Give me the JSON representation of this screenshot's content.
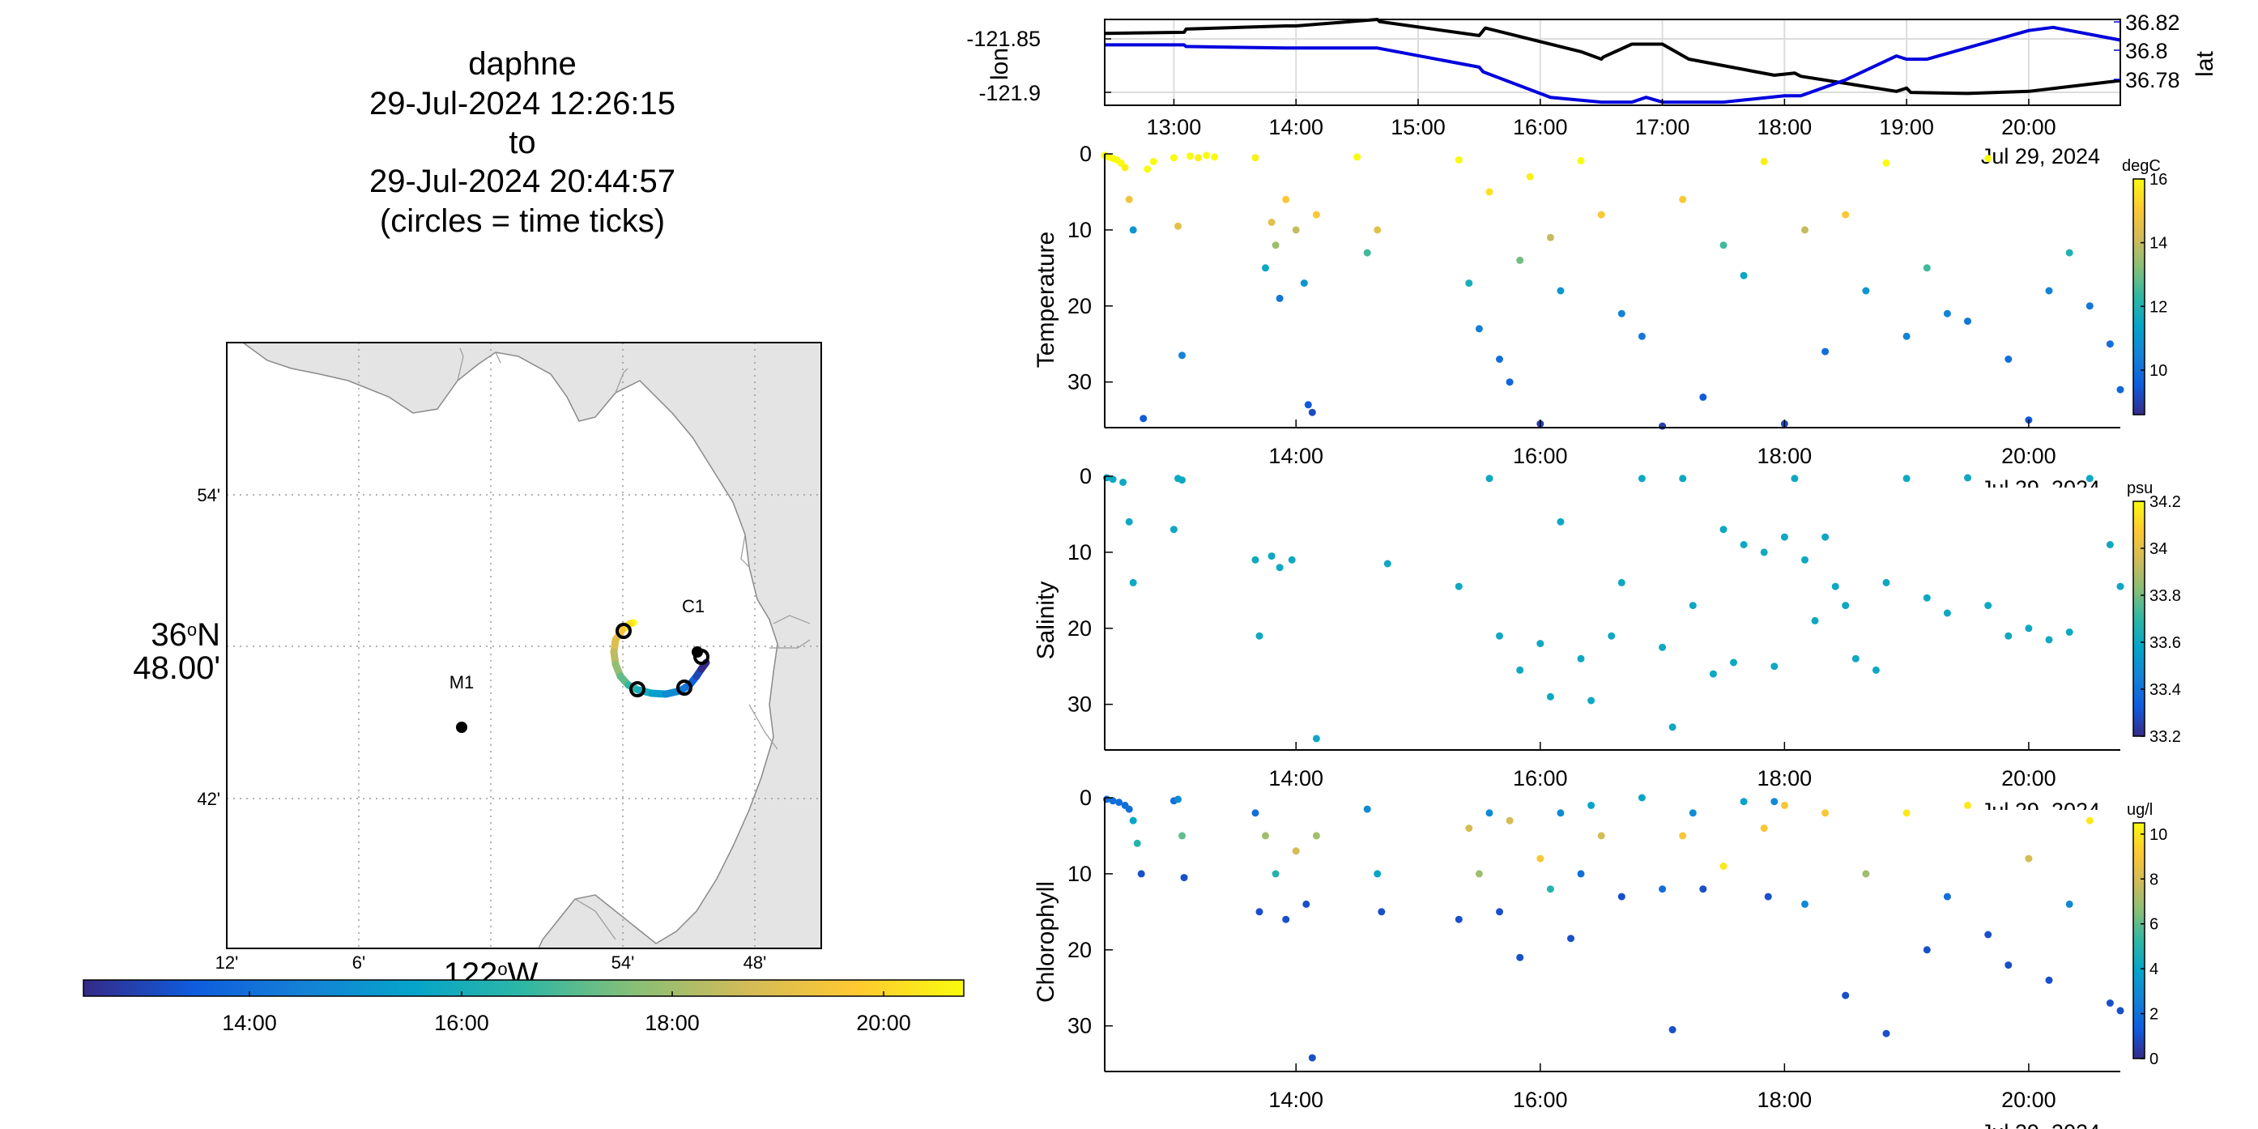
{
  "title_lines": [
    "daphne",
    "29-Jul-2024 12:26:15",
    "to",
    "29-Jul-2024 20:44:57",
    "(circles = time ticks)"
  ],
  "map": {
    "lat_ticks": [
      "54'",
      "48.00'",
      "42'"
    ],
    "lat_deg_label": "36",
    "lat_deg_sup": "o",
    "lat_hem": "N",
    "lon_ticks": [
      "12'",
      "6'",
      "54'",
      "48'"
    ],
    "lon_deg_label": "122",
    "lon_deg_sup": "o",
    "lon_hem": "W",
    "stations": [
      {
        "name": "C1"
      },
      {
        "name": "M1"
      }
    ],
    "time_colorbar_ticks": [
      "14:00",
      "16:00",
      "18:00",
      "20:00"
    ]
  },
  "colors": {
    "lon_line": "#000000",
    "lat_line": "#0000dd",
    "land": "#e4e4e4",
    "parula": [
      "#352a87",
      "#0f5cdd",
      "#1481d6",
      "#06a4ca",
      "#2eb7a4",
      "#87bf77",
      "#d1bb59",
      "#fec832",
      "#f9fb0e"
    ]
  },
  "chart_data": [
    {
      "type": "line",
      "title": "",
      "xlabel": "Jul 29, 2024",
      "x_ticks": [
        "13:00",
        "14:00",
        "15:00",
        "16:00",
        "17:00",
        "18:00",
        "19:00",
        "20:00"
      ],
      "x_range": [
        "12:26",
        "20:45"
      ],
      "grid": true,
      "y_left": {
        "label": "lon",
        "ticks": [
          "-121.85",
          "-121.9"
        ],
        "range": [
          -121.91,
          -121.83
        ]
      },
      "y_right": {
        "label": "lat",
        "ticks": [
          "36.82",
          "36.8",
          "36.78"
        ],
        "range": [
          36.77,
          36.824
        ]
      },
      "series": [
        {
          "name": "lon",
          "axis": "left",
          "x": [
            "12:26",
            "13:05",
            "13:06",
            "13:55",
            "14:00",
            "14:40",
            "14:41",
            "15:30",
            "15:33",
            "16:20",
            "16:30",
            "16:31",
            "16:45",
            "16:55",
            "17:00",
            "17:13",
            "17:55",
            "18:05",
            "18:08",
            "18:55",
            "19:00",
            "19:02",
            "19:30",
            "20:00",
            "20:45"
          ],
          "y": [
            -121.843,
            -121.842,
            -121.839,
            -121.836,
            -121.836,
            -121.83,
            -121.832,
            -121.845,
            -121.838,
            -121.86,
            -121.867,
            -121.865,
            -121.853,
            -121.853,
            -121.853,
            -121.867,
            -121.882,
            -121.88,
            -121.883,
            -121.897,
            -121.894,
            -121.898,
            -121.899,
            -121.897,
            -121.887
          ]
        },
        {
          "name": "lat",
          "axis": "right",
          "x": [
            "12:26",
            "13:05",
            "13:06",
            "13:55",
            "14:00",
            "14:40",
            "15:30",
            "15:32",
            "16:05",
            "16:30",
            "16:45",
            "16:52",
            "17:00",
            "17:30",
            "18:00",
            "18:08",
            "18:30",
            "18:55",
            "19:00",
            "19:10",
            "20:00",
            "20:12",
            "20:45"
          ],
          "y": [
            36.808,
            36.808,
            36.807,
            36.806,
            36.806,
            36.806,
            36.794,
            36.791,
            36.775,
            36.772,
            36.772,
            36.775,
            36.772,
            36.772,
            36.776,
            36.776,
            36.786,
            36.801,
            36.799,
            36.799,
            36.817,
            36.819,
            36.811
          ]
        }
      ]
    },
    {
      "type": "scatter",
      "title": "",
      "ylabel": "Temperature",
      "xlabel": "Jul 29, 2024",
      "x_ticks": [
        "14:00",
        "16:00",
        "18:00",
        "20:00"
      ],
      "y_ticks": [
        "0",
        "10",
        "20",
        "30"
      ],
      "ylim": [
        0,
        36
      ],
      "y_reversed": true,
      "colorbar": {
        "unit": "degC",
        "ticks": [
          "16",
          "14",
          "12",
          "10"
        ],
        "range": [
          8.6,
          16
        ]
      },
      "x": [
        "12:26",
        "12:28",
        "12:30",
        "12:32",
        "12:34",
        "12:36",
        "12:38",
        "12:40",
        "12:45",
        "12:47",
        "12:50",
        "13:00",
        "13:02",
        "13:04",
        "13:08",
        "13:12",
        "13:16",
        "13:20",
        "13:40",
        "13:45",
        "13:48",
        "13:50",
        "13:52",
        "13:55",
        "14:00",
        "14:04",
        "14:06",
        "14:08",
        "14:10",
        "14:30",
        "14:35",
        "14:40",
        "15:20",
        "15:25",
        "15:30",
        "15:35",
        "15:40",
        "15:45",
        "15:50",
        "15:55",
        "16:00",
        "16:05",
        "16:10",
        "16:20",
        "16:30",
        "16:40",
        "16:50",
        "17:00",
        "17:10",
        "17:20",
        "17:30",
        "17:40",
        "17:50",
        "18:00",
        "18:10",
        "18:20",
        "18:30",
        "18:40",
        "18:50",
        "19:00",
        "19:10",
        "19:20",
        "19:30",
        "19:40",
        "19:50",
        "20:00",
        "20:10",
        "20:20",
        "20:30",
        "20:40",
        "20:45"
      ],
      "y": [
        0.2,
        0.4,
        0.6,
        0.8,
        1.2,
        1.8,
        6,
        10,
        34.8,
        2,
        1,
        0.5,
        9.5,
        26.5,
        0.3,
        0.5,
        0.2,
        0.4,
        0.5,
        15,
        9,
        12,
        19,
        6,
        10,
        17,
        33,
        34,
        8,
        0.4,
        13,
        10,
        0.8,
        17,
        23,
        5,
        27,
        30,
        14,
        3,
        35.5,
        11,
        18,
        0.9,
        8,
        21,
        24,
        35.8,
        6,
        32,
        12,
        16,
        1,
        35.5,
        10,
        26,
        8,
        18,
        1.2,
        24,
        15,
        21,
        22,
        0.6,
        27,
        35,
        18,
        13,
        20,
        25,
        31
      ],
      "c": [
        16,
        16,
        16,
        16,
        16,
        15.8,
        14.8,
        11,
        9.5,
        16,
        16,
        16,
        14.5,
        10.5,
        16,
        15.8,
        16,
        16,
        15.8,
        11.5,
        14.5,
        13.5,
        10.2,
        15,
        14,
        11,
        9.5,
        9.2,
        15,
        16,
        12.5,
        14.5,
        16,
        11.8,
        10.4,
        15.5,
        10,
        9.8,
        13,
        15.8,
        9,
        14,
        11,
        16,
        15,
        10.5,
        10.2,
        9,
        15,
        9.5,
        12.5,
        11.5,
        15.8,
        9.2,
        14,
        10,
        15,
        11,
        16,
        10.5,
        12.5,
        10.5,
        10.2,
        16,
        10,
        9.5,
        10.5,
        12,
        10.2,
        10,
        9.8
      ]
    },
    {
      "type": "scatter",
      "title": "",
      "ylabel": "Salinity",
      "xlabel": "Jul 29, 2024",
      "x_ticks": [
        "14:00",
        "16:00",
        "18:00",
        "20:00"
      ],
      "y_ticks": [
        "0",
        "10",
        "20",
        "30"
      ],
      "ylim": [
        0,
        36
      ],
      "y_reversed": true,
      "colorbar": {
        "unit": "psu",
        "ticks": [
          "34.2",
          "34",
          "33.8",
          "33.6",
          "33.4",
          "33.2"
        ],
        "range": [
          33.2,
          34.2
        ]
      },
      "x": [
        "12:27",
        "12:30",
        "12:35",
        "12:38",
        "12:40",
        "13:00",
        "13:02",
        "13:04",
        "13:40",
        "13:42",
        "13:48",
        "13:52",
        "13:58",
        "14:10",
        "14:45",
        "15:20",
        "15:35",
        "15:40",
        "15:50",
        "16:00",
        "16:05",
        "16:10",
        "16:20",
        "16:25",
        "16:35",
        "16:40",
        "16:50",
        "17:00",
        "17:05",
        "17:10",
        "17:15",
        "17:25",
        "17:30",
        "17:35",
        "17:40",
        "17:50",
        "17:55",
        "18:00",
        "18:05",
        "18:10",
        "18:15",
        "18:20",
        "18:25",
        "18:30",
        "18:35",
        "18:45",
        "18:50",
        "19:00",
        "19:10",
        "19:20",
        "19:30",
        "19:40",
        "19:50",
        "20:00",
        "20:10",
        "20:20",
        "20:30",
        "20:40",
        "20:45"
      ],
      "y": [
        0.2,
        0.4,
        0.8,
        6,
        14,
        7,
        0.3,
        0.5,
        11,
        21,
        10.5,
        12,
        11,
        34.5,
        11.5,
        14.5,
        0.3,
        21,
        25.5,
        22,
        29,
        6,
        24,
        29.5,
        21,
        14,
        0.3,
        22.5,
        33,
        0.3,
        17,
        26,
        7,
        24.5,
        9,
        10,
        25,
        8,
        0.3,
        11,
        19,
        8,
        14.5,
        17,
        24,
        25.5,
        14,
        0.3,
        16,
        18,
        0.2,
        17,
        21,
        20,
        21.5,
        20.5,
        0.3,
        9,
        14.5
      ],
      "c": [
        33.6,
        33.6,
        33.6,
        33.6,
        33.6,
        33.6,
        33.6,
        33.6,
        33.6,
        33.6,
        33.6,
        33.6,
        33.6,
        33.6,
        33.6,
        33.6,
        33.6,
        33.6,
        33.6,
        33.6,
        33.6,
        33.6,
        33.6,
        33.6,
        33.6,
        33.6,
        33.6,
        33.6,
        33.6,
        33.6,
        33.6,
        33.6,
        33.6,
        33.6,
        33.6,
        33.6,
        33.6,
        33.6,
        33.6,
        33.6,
        33.6,
        33.6,
        33.6,
        33.6,
        33.6,
        33.6,
        33.6,
        33.6,
        33.6,
        33.6,
        33.6,
        33.6,
        33.6,
        33.6,
        33.6,
        33.6,
        33.6,
        33.6,
        33.6
      ]
    },
    {
      "type": "scatter",
      "title": "",
      "ylabel": "Chlorophyll",
      "xlabel": "Jul 29, 2024",
      "x_ticks": [
        "14:00",
        "16:00",
        "18:00",
        "20:00"
      ],
      "y_ticks": [
        "0",
        "10",
        "20",
        "30"
      ],
      "ylim": [
        0,
        36
      ],
      "y_reversed": true,
      "colorbar": {
        "unit": "ug/l",
        "ticks": [
          "10",
          "8",
          "6",
          "4",
          "2",
          "0"
        ],
        "range": [
          0,
          10.5
        ]
      },
      "x": [
        "12:27",
        "12:30",
        "12:33",
        "12:36",
        "12:38",
        "12:40",
        "12:42",
        "12:44",
        "13:00",
        "13:02",
        "13:04",
        "13:05",
        "13:40",
        "13:42",
        "13:45",
        "13:50",
        "13:55",
        "14:00",
        "14:05",
        "14:08",
        "14:10",
        "14:35",
        "14:40",
        "14:42",
        "15:20",
        "15:25",
        "15:30",
        "15:35",
        "15:40",
        "15:45",
        "15:50",
        "16:00",
        "16:05",
        "16:10",
        "16:15",
        "16:20",
        "16:25",
        "16:30",
        "16:40",
        "16:50",
        "17:00",
        "17:05",
        "17:10",
        "17:15",
        "17:20",
        "17:30",
        "17:40",
        "17:50",
        "17:52",
        "17:55",
        "18:00",
        "18:10",
        "18:20",
        "18:30",
        "18:40",
        "18:50",
        "19:00",
        "19:10",
        "19:20",
        "19:30",
        "19:40",
        "19:50",
        "20:00",
        "20:10",
        "20:20",
        "20:30",
        "20:40",
        "20:45"
      ],
      "y": [
        0.2,
        0.4,
        0.6,
        1,
        1.5,
        3,
        6,
        10,
        0.4,
        0.2,
        5,
        10.5,
        2,
        15,
        5,
        10,
        16,
        7,
        14,
        34.2,
        5,
        1.5,
        10,
        15,
        16,
        4,
        10,
        2,
        15,
        3,
        21,
        8,
        12,
        2,
        18.5,
        10,
        1,
        5,
        13,
        0,
        12,
        30.5,
        5,
        2,
        12,
        9,
        0.5,
        4,
        13,
        0.5,
        1,
        14,
        2,
        26,
        10,
        31,
        2,
        20,
        13,
        1,
        18,
        22,
        8,
        24,
        14,
        3,
        27,
        28
      ],
      "c": [
        2,
        2,
        2,
        2,
        2,
        4,
        5,
        1,
        2,
        3,
        6,
        1,
        2,
        1,
        7,
        5,
        1,
        8,
        1,
        1,
        7,
        3,
        4,
        1,
        1,
        8,
        7,
        3,
        1,
        8,
        1,
        9,
        5,
        3,
        1,
        2,
        4,
        8,
        1,
        4,
        2,
        1,
        9,
        3,
        1,
        10,
        4,
        9,
        1,
        3,
        9,
        3,
        9,
        1,
        7,
        1,
        10,
        1,
        2,
        10,
        1,
        1,
        8,
        1,
        3,
        10,
        1,
        1
      ]
    }
  ]
}
